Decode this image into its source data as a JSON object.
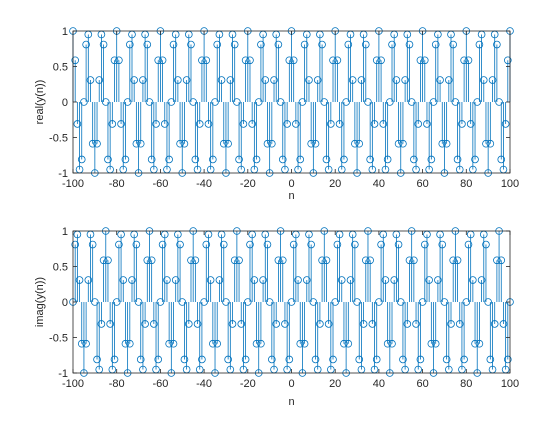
{
  "chart_data": [
    {
      "type": "stem",
      "title": "",
      "xlabel": "n",
      "ylabel": "real(y(n))",
      "xlim": [
        -100,
        100
      ],
      "ylim": [
        -1,
        1
      ],
      "xticks": [
        "-100",
        "-80",
        "-60",
        "-40",
        "-20",
        "0",
        "20",
        "40",
        "60",
        "80",
        "100"
      ],
      "yticks": [
        "-1",
        "-0.5",
        "0",
        "0.5",
        "1"
      ],
      "grid": false,
      "legend": "none",
      "series": [
        {
          "expression": "cos(0.3*pi*n)",
          "n_range": [
            -100,
            100
          ],
          "marker": "circle",
          "color": "#0072BD"
        }
      ]
    },
    {
      "type": "stem",
      "title": "",
      "xlabel": "n",
      "ylabel": "imag(y(n))",
      "xlim": [
        -100,
        100
      ],
      "ylim": [
        -1,
        1
      ],
      "xticks": [
        "-100",
        "-80",
        "-60",
        "-40",
        "-20",
        "0",
        "20",
        "40",
        "60",
        "80",
        "100"
      ],
      "yticks": [
        "-1",
        "-0.5",
        "0",
        "0.5",
        "1"
      ],
      "grid": false,
      "legend": "none",
      "series": [
        {
          "expression": "sin(0.3*pi*n)",
          "n_range": [
            -100,
            100
          ],
          "marker": "circle",
          "color": "#0072BD"
        }
      ]
    }
  ]
}
